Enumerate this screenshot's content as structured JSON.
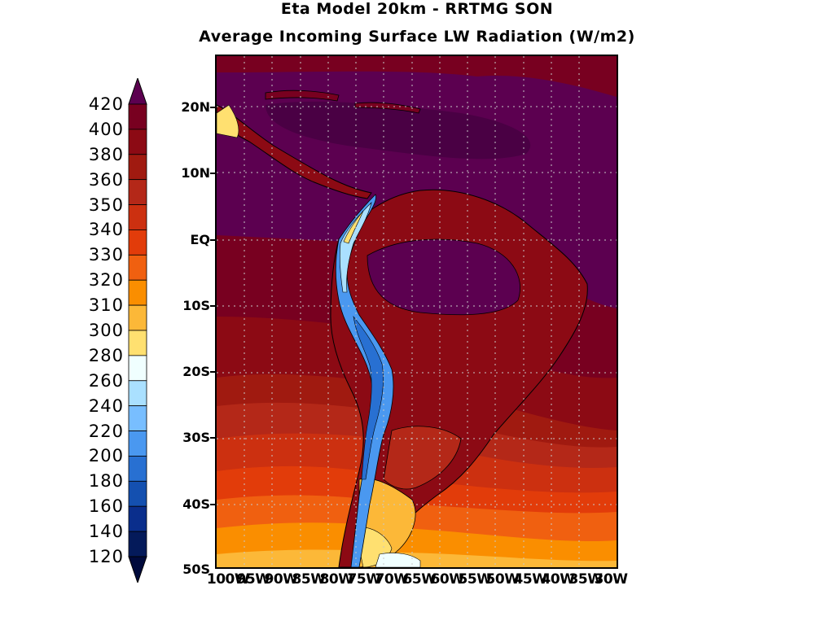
{
  "title": "Eta Model 20km - RRTMG SON",
  "subtitle": "Average Incoming Surface LW Radiation (W/m2)",
  "colorbar": {
    "levels": [
      "420",
      "400",
      "380",
      "360",
      "350",
      "340",
      "330",
      "320",
      "310",
      "300",
      "280",
      "260",
      "240",
      "220",
      "200",
      "180",
      "160",
      "140",
      "120"
    ],
    "colors": [
      "#5c0050",
      "#780020",
      "#8c0a14",
      "#a01a10",
      "#b42818",
      "#cc3010",
      "#e23c0a",
      "#f06010",
      "#fa8e00",
      "#fcb838",
      "#ffe070",
      "#f0ffff",
      "#aae0ff",
      "#78beff",
      "#4a98f0",
      "#2870d2",
      "#1450b0",
      "#0a2e8c",
      "#041a5a",
      "#000a3c"
    ]
  },
  "map": {
    "lat_labels": [
      "20N",
      "10N",
      "EQ",
      "10S",
      "20S",
      "30S",
      "40S",
      "50S"
    ],
    "lon_labels": [
      "100W",
      "95W",
      "90W",
      "85W",
      "80W",
      "75W",
      "70W",
      "65W",
      "60W",
      "55W",
      "50W",
      "45W",
      "40W",
      "35W",
      "30W"
    ],
    "colors": {
      "c400": "#5c0050",
      "c380": "#780020",
      "c360": "#8c0a14",
      "c350": "#a01a10",
      "c340": "#b42818",
      "c330": "#cc3010",
      "c320": "#e23c0a",
      "c310": "#f06010",
      "c300": "#fa8e00",
      "c290": "#fcb838",
      "c280": "#ffe070",
      "c260": "#f0ffff",
      "c240": "#aae0ff",
      "c220": "#78beff",
      "c200": "#4a98f0",
      "c180": "#2870d2",
      "c160": "#1450b0"
    }
  }
}
